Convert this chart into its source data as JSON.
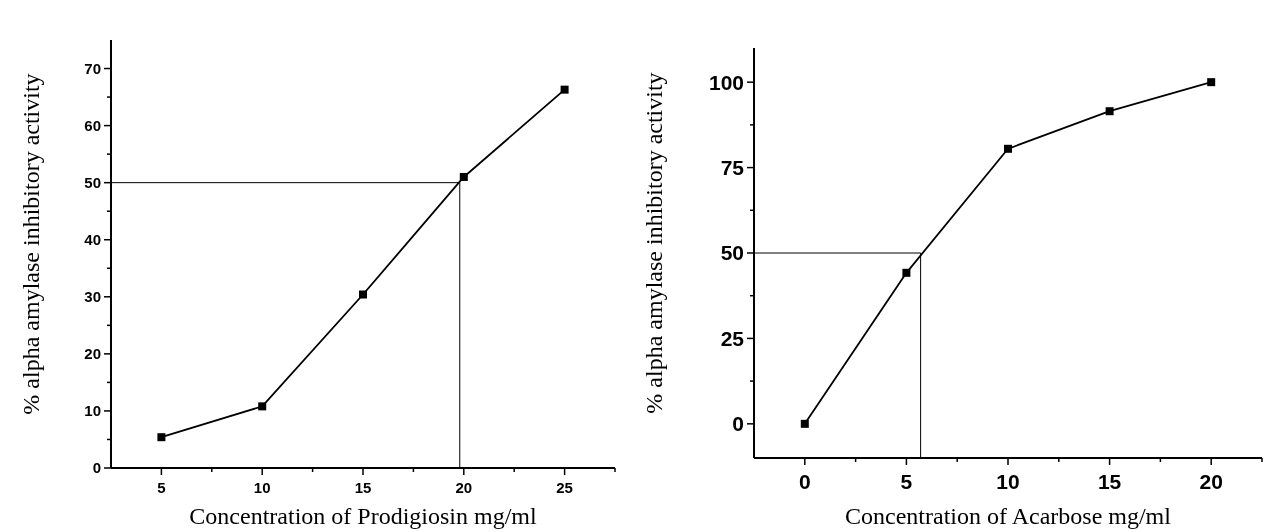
{
  "chart_data": [
    {
      "type": "line",
      "xlabel": "Concentration of Prodigiosin mg/ml",
      "ylabel": "% alpha amylase inhibitory activity",
      "x": [
        5,
        10,
        15,
        20,
        25
      ],
      "marker": "square",
      "xlim": [
        2.5,
        27.5
      ],
      "ylim": [
        0,
        75
      ],
      "xticks": [
        5,
        {
          "value": 7.5,
          "label": null
        },
        10,
        {
          "value": 12.5,
          "label": null
        },
        15,
        {
          "value": 17.5,
          "label": null
        },
        20,
        {
          "value": 22.5,
          "label": null
        },
        25,
        {
          "value": 27.5,
          "label": null
        }
      ],
      "yticks": [
        0,
        {
          "value": 5,
          "label": null
        },
        10,
        {
          "value": 15,
          "label": null
        },
        20,
        {
          "value": 25,
          "label": null
        },
        30,
        {
          "value": 35,
          "label": null
        },
        40,
        {
          "value": 45,
          "label": null
        },
        50,
        {
          "value": 55,
          "label": null
        },
        60,
        {
          "value": 65,
          "label": null
        },
        70
      ],
      "series": [
        {
          "color": "#000000",
          "values": [
            5.4,
            10.8,
            30.4,
            51,
            66.3
          ]
        }
      ],
      "ref_lines": [
        {
          "axis": "y",
          "value": 50,
          "color": "#000000"
        },
        {
          "axis": "x",
          "value": 19.8,
          "color": "#000000"
        }
      ]
    },
    {
      "type": "line",
      "xlabel": "Concentration of Acarbose mg/ml",
      "ylabel": "% alpha amylase inhibitory activity",
      "x": [
        0,
        5,
        10,
        15,
        20
      ],
      "marker": "square",
      "xlim": [
        -2.5,
        22.5
      ],
      "ylim": [
        -10,
        110
      ],
      "xticks": [
        0,
        {
          "value": 2.5,
          "label": null
        },
        5,
        {
          "value": 7.5,
          "label": null
        },
        10,
        {
          "value": 12.5,
          "label": null
        },
        15,
        {
          "value": 17.5,
          "label": null
        },
        20,
        {
          "value": 22.5,
          "label": null
        }
      ],
      "yticks": [
        0,
        {
          "value": 12.5,
          "label": null
        },
        25,
        {
          "value": 37.5,
          "label": null
        },
        50,
        {
          "value": 62.5,
          "label": null
        },
        75,
        {
          "value": 87.5,
          "label": null
        },
        100
      ],
      "series": [
        {
          "color": "#000000",
          "values": [
            0,
            44.2,
            80.5,
            91.5,
            100
          ]
        }
      ],
      "ref_lines": [
        {
          "axis": "y",
          "value": 50,
          "color": "#000000"
        },
        {
          "axis": "x",
          "value": 5.7,
          "color": "#000000"
        }
      ]
    }
  ]
}
